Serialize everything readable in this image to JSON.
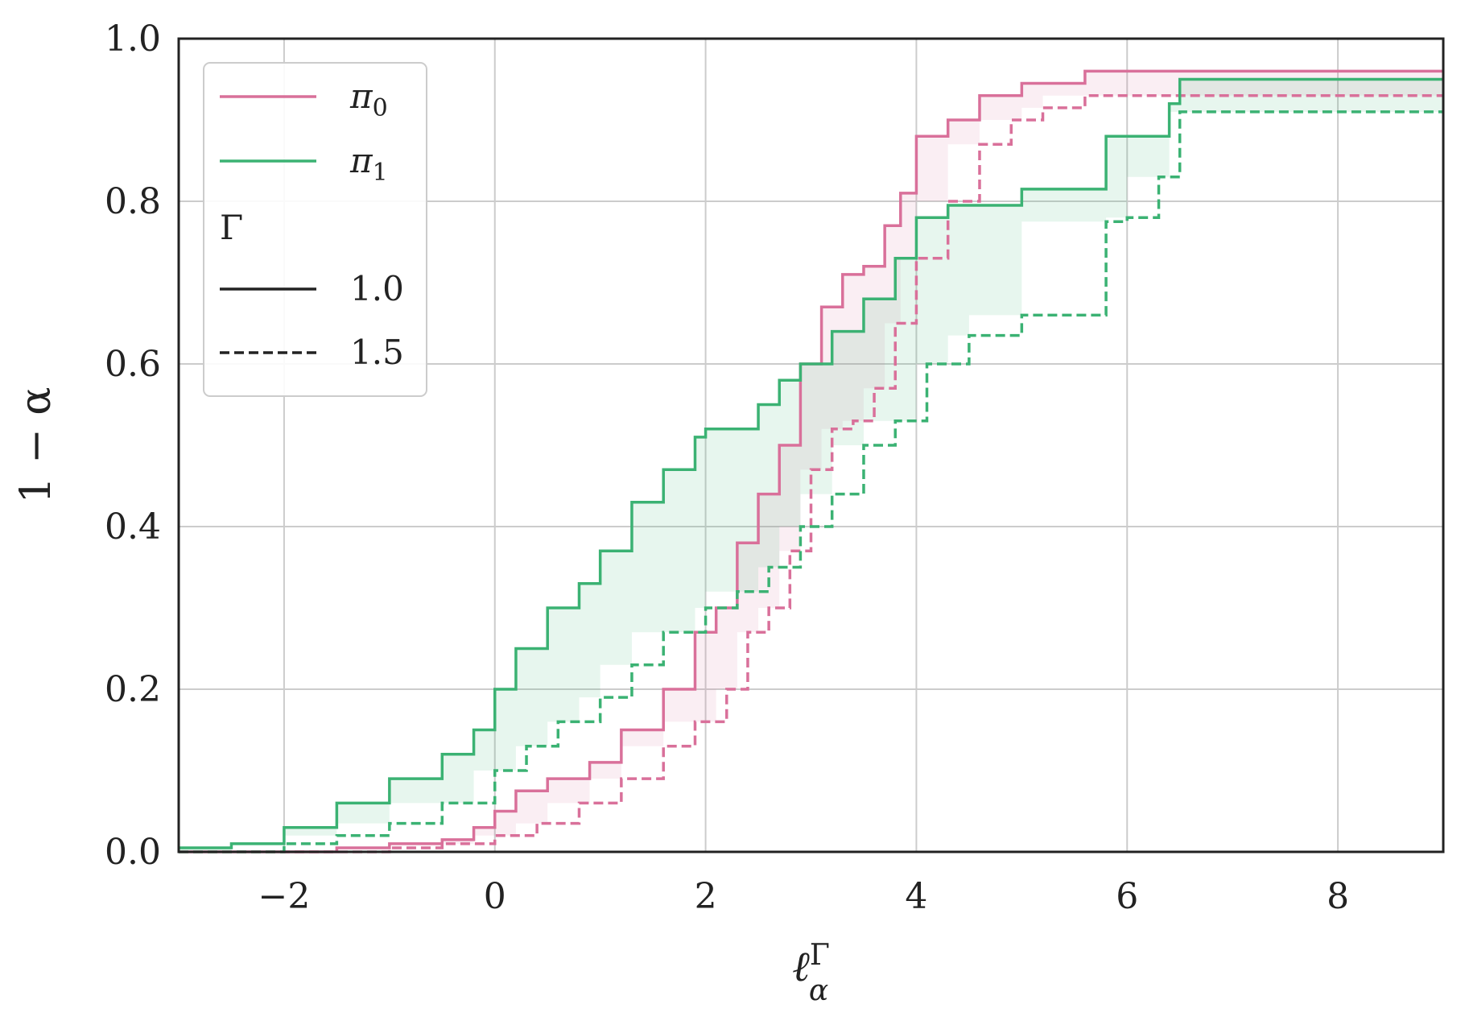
{
  "chart_data": {
    "type": "line",
    "step": true,
    "xlabel": "ℓ",
    "xlabel_sup": "Γ",
    "xlabel_sub": "α",
    "ylabel": "1 − α",
    "xlim": [
      -3.0,
      9.0
    ],
    "ylim": [
      0.0,
      1.0
    ],
    "xticks": [
      -2,
      0,
      2,
      4,
      6,
      8
    ],
    "xtick_labels": [
      "−2",
      "0",
      "2",
      "4",
      "6",
      "8"
    ],
    "yticks": [
      0.0,
      0.2,
      0.4,
      0.6,
      0.8,
      1.0
    ],
    "ytick_labels": [
      "0.0",
      "0.2",
      "0.4",
      "0.6",
      "0.8",
      "1.0"
    ],
    "grid": true,
    "legend_position": "top-left",
    "legend": {
      "items": [
        {
          "label": "π",
          "sub": "0",
          "color": "#d9709a",
          "dash": "solid"
        },
        {
          "label": "π",
          "sub": "1",
          "color": "#3bb273",
          "dash": "solid"
        }
      ],
      "style_title": "Γ",
      "style_items": [
        {
          "label": "1.0",
          "color": "#222222",
          "dash": "solid"
        },
        {
          "label": "1.5",
          "color": "#222222",
          "dash": "dashed"
        }
      ]
    },
    "series": [
      {
        "name": "π0",
        "gamma": "1.0",
        "color": "#d9709a",
        "dash": "solid",
        "x": [
          -3.0,
          -1.5,
          -1.0,
          -0.5,
          -0.2,
          0.0,
          0.2,
          0.5,
          0.9,
          1.2,
          1.6,
          1.9,
          2.1,
          2.3,
          2.5,
          2.7,
          2.9,
          3.1,
          3.3,
          3.5,
          3.7,
          3.85,
          4.0,
          4.3,
          4.6,
          5.0,
          5.6,
          9.0
        ],
        "y": [
          0.0,
          0.005,
          0.01,
          0.015,
          0.03,
          0.05,
          0.075,
          0.09,
          0.11,
          0.15,
          0.2,
          0.27,
          0.3,
          0.38,
          0.44,
          0.5,
          0.6,
          0.67,
          0.71,
          0.72,
          0.77,
          0.81,
          0.88,
          0.9,
          0.93,
          0.945,
          0.96,
          0.96
        ]
      },
      {
        "name": "π0",
        "gamma": "1.5",
        "color": "#d9709a",
        "dash": "dashed",
        "x": [
          -3.0,
          -1.0,
          -0.5,
          0.0,
          0.4,
          0.8,
          1.2,
          1.6,
          1.9,
          2.2,
          2.4,
          2.6,
          2.8,
          3.0,
          3.2,
          3.4,
          3.6,
          3.8,
          4.0,
          4.3,
          4.6,
          4.9,
          5.2,
          5.6,
          9.0
        ],
        "y": [
          0.0,
          0.005,
          0.01,
          0.02,
          0.035,
          0.06,
          0.09,
          0.13,
          0.16,
          0.2,
          0.27,
          0.3,
          0.37,
          0.47,
          0.52,
          0.53,
          0.57,
          0.65,
          0.73,
          0.8,
          0.87,
          0.9,
          0.915,
          0.93,
          0.93
        ]
      },
      {
        "name": "π1",
        "gamma": "1.0",
        "color": "#3bb273",
        "dash": "solid",
        "x": [
          -3.0,
          -2.5,
          -2.0,
          -1.5,
          -1.0,
          -0.5,
          -0.2,
          0.0,
          0.2,
          0.5,
          0.8,
          1.0,
          1.3,
          1.6,
          1.9,
          2.0,
          2.5,
          2.7,
          2.9,
          3.2,
          3.5,
          3.8,
          4.0,
          4.3,
          5.0,
          5.8,
          6.4,
          6.5,
          9.0
        ],
        "y": [
          0.005,
          0.01,
          0.03,
          0.06,
          0.09,
          0.12,
          0.15,
          0.2,
          0.25,
          0.3,
          0.33,
          0.37,
          0.43,
          0.47,
          0.51,
          0.52,
          0.55,
          0.58,
          0.6,
          0.64,
          0.68,
          0.73,
          0.78,
          0.795,
          0.815,
          0.88,
          0.92,
          0.95,
          0.95
        ]
      },
      {
        "name": "π1",
        "gamma": "1.5",
        "color": "#3bb273",
        "dash": "dashed",
        "x": [
          -3.0,
          -2.0,
          -1.5,
          -1.0,
          -0.5,
          0.0,
          0.3,
          0.6,
          1.0,
          1.3,
          1.6,
          2.0,
          2.3,
          2.6,
          2.9,
          3.2,
          3.5,
          3.8,
          4.1,
          4.5,
          5.0,
          5.8,
          6.0,
          6.3,
          6.5,
          9.0
        ],
        "y": [
          0.0,
          0.01,
          0.02,
          0.035,
          0.06,
          0.1,
          0.13,
          0.16,
          0.19,
          0.23,
          0.27,
          0.3,
          0.32,
          0.35,
          0.4,
          0.44,
          0.5,
          0.53,
          0.6,
          0.635,
          0.66,
          0.775,
          0.78,
          0.83,
          0.91,
          0.91
        ]
      }
    ]
  }
}
